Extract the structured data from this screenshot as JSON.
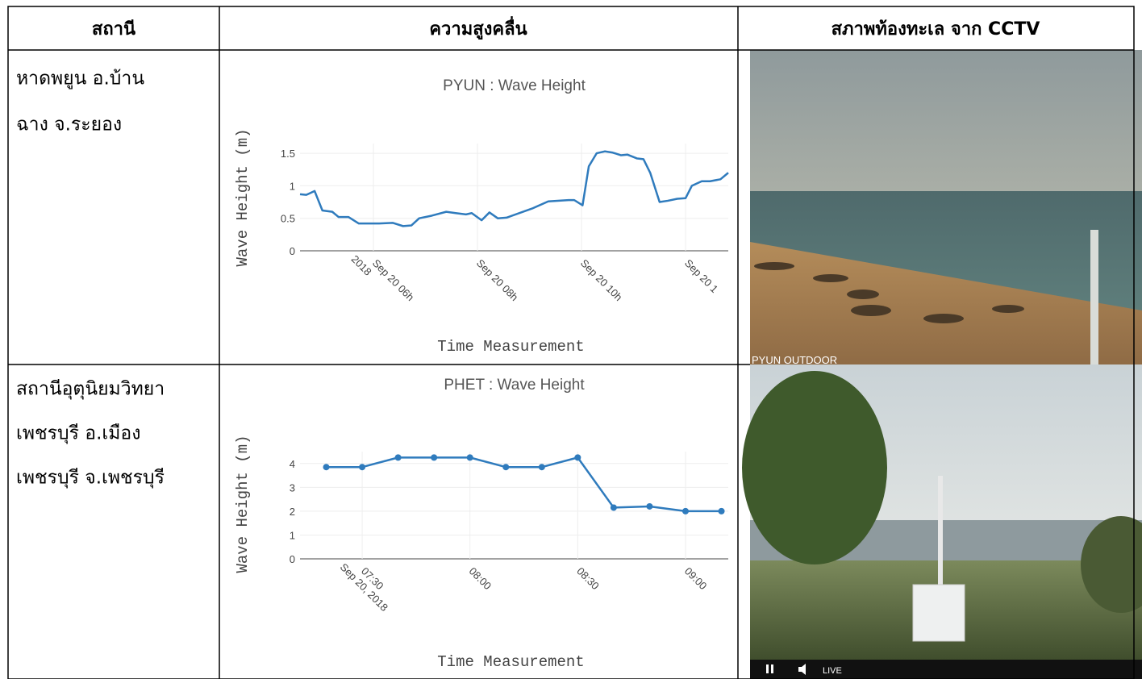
{
  "table": {
    "header": [
      "สถานี",
      "ความสูงคลื่น",
      "สภาพท้องทะเล จาก CCTV"
    ],
    "rows": [
      {
        "station": [
          "หาดพยูน อ.บ้าน",
          "ฉาง จ.ระยอง"
        ],
        "cctv_label": "PYUN OUTDOOR"
      },
      {
        "station": [
          "สถานีอุตุนิยมวิทยา",
          "เพชรบุรี อ.เมือง",
          "เพชรบุรี จ.เพชรบุรี"
        ],
        "cctv_label": "LIVE"
      }
    ]
  },
  "chart_data": [
    {
      "type": "line",
      "title": "PYUN : Wave Height",
      "x_label": "Time Measurement",
      "y_label": "Wave Height (m)",
      "x": [
        4.59,
        4.71,
        4.87,
        5.02,
        5.21,
        5.33,
        5.52,
        5.72,
        6.11,
        6.37,
        6.57,
        6.73,
        6.88,
        7.12,
        7.4,
        7.58,
        7.78,
        7.89,
        8.08,
        8.23,
        8.39,
        8.56,
        9.05,
        9.36,
        9.75,
        9.86,
        10.02,
        10.14,
        10.29,
        10.45,
        10.6,
        10.76,
        10.88,
        11.07,
        11.19,
        11.32,
        11.5,
        11.66,
        11.84,
        12.0,
        12.12,
        12.31,
        12.47,
        12.67,
        12.82
      ],
      "values": [
        0.87,
        0.86,
        0.92,
        0.62,
        0.6,
        0.52,
        0.52,
        0.42,
        0.42,
        0.43,
        0.38,
        0.39,
        0.5,
        0.54,
        0.6,
        0.58,
        0.56,
        0.58,
        0.47,
        0.59,
        0.5,
        0.51,
        0.65,
        0.76,
        0.78,
        0.78,
        0.7,
        1.3,
        1.5,
        1.53,
        1.51,
        1.47,
        1.48,
        1.42,
        1.41,
        1.2,
        0.75,
        0.77,
        0.8,
        0.81,
        1.0,
        1.07,
        1.07,
        1.1,
        1.2
      ],
      "color": "#2f7bbd",
      "markers": false,
      "grid": true,
      "xlim": [
        4.59,
        12.82
      ],
      "ylim": [
        0,
        1.65
      ],
      "xticks": [
        {
          "value": 6,
          "label": "Sep 20 06h\n2018"
        },
        {
          "value": 8,
          "label": "Sep 20 08h"
        },
        {
          "value": 10,
          "label": "Sep 20 10h"
        },
        {
          "value": 12,
          "label": "Sep 20 1"
        }
      ],
      "yticks": [
        0,
        0.5,
        1,
        1.5
      ]
    },
    {
      "type": "line",
      "title": "PHET : Wave Height",
      "x_label": "Time Measurement",
      "y_label": "Wave Height (m)",
      "x": [
        440,
        450,
        460,
        470,
        480,
        490,
        500,
        510,
        520,
        530,
        540,
        550
      ],
      "values": [
        3.85,
        3.85,
        4.25,
        4.25,
        4.25,
        3.85,
        3.85,
        4.25,
        2.15,
        2.2,
        2.0,
        2.0
      ],
      "color": "#2f7bbd",
      "markers": true,
      "grid": true,
      "xlim": [
        432.7,
        551.9
      ],
      "ylim": [
        0,
        4.5
      ],
      "xticks": [
        {
          "value": 450,
          "label": "07:30\nSep 20, 2018"
        },
        {
          "value": 480,
          "label": "08:00"
        },
        {
          "value": 510,
          "label": "08:30"
        },
        {
          "value": 540,
          "label": "09:00"
        }
      ],
      "yticks": [
        0,
        1,
        2,
        3,
        4
      ]
    }
  ]
}
